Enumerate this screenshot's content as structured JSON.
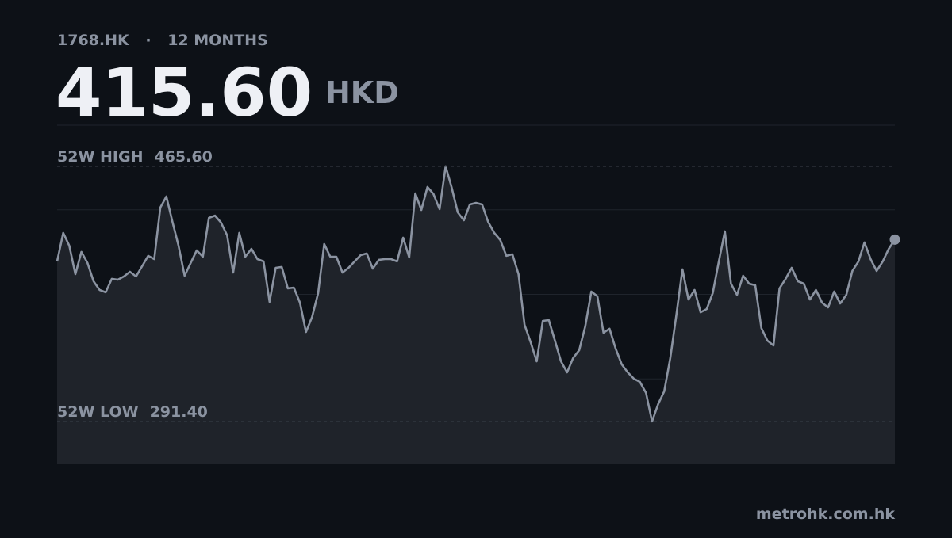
{
  "chart_data": {
    "type": "line",
    "ticker": "1768.HK",
    "separator": "·",
    "period": "12 MONTHS",
    "price": "415.60",
    "currency": "HKD",
    "source": "metrohk.com.hk",
    "ylim": [
      262.7,
      493.7
    ],
    "line_color": "#8b93a1",
    "annotations": [
      {
        "label": "52W HIGH",
        "value": 465.6,
        "value_label": "465.60"
      },
      {
        "label": "52W LOW",
        "value": 291.4,
        "value_label": "291.40"
      }
    ],
    "values": [
      400.7,
      420.2,
      411.5,
      392.0,
      407.2,
      399.6,
      387.2,
      381.2,
      379.6,
      388.8,
      388.2,
      390.4,
      393.6,
      390.4,
      397.4,
      404.5,
      402.3,
      437.5,
      445.0,
      427.7,
      411.5,
      390.9,
      399.6,
      408.2,
      403.9,
      430.4,
      432.0,
      427.2,
      418.5,
      393.1,
      420.2,
      403.9,
      409.3,
      402.3,
      400.7,
      373.1,
      396.3,
      396.9,
      382.3,
      382.8,
      372.5,
      352.5,
      362.8,
      379.0,
      412.6,
      403.9,
      403.9,
      393.1,
      396.3,
      400.7,
      405.0,
      406.1,
      395.8,
      401.8,
      402.3,
      402.3,
      400.7,
      416.9,
      403.4,
      447.2,
      435.8,
      451.5,
      446.7,
      436.4,
      465.6,
      451.0,
      434.2,
      428.8,
      439.6,
      440.7,
      439.6,
      427.7,
      420.2,
      415.3,
      404.5,
      405.6,
      392.0,
      357.4,
      345.5,
      332.5,
      360.1,
      360.6,
      346.6,
      332.5,
      324.9,
      334.7,
      340.1,
      356.3,
      380.1,
      376.9,
      352.0,
      354.7,
      341.2,
      330.4,
      324.9,
      320.6,
      318.4,
      310.9,
      291.4,
      303.3,
      311.9,
      334.7,
      363.9,
      395.3,
      374.7,
      381.2,
      366.0,
      368.2,
      379.0,
      400.7,
      421.2,
      385.5,
      377.9,
      390.9,
      385.5,
      384.4,
      355.2,
      346.6,
      343.3,
      382.3,
      388.8,
      396.3,
      387.2,
      385.5,
      374.7,
      381.2,
      372.5,
      369.3,
      380.1,
      372.0,
      377.9,
      394.2,
      400.7,
      413.7,
      402.3,
      394.2,
      400.7,
      409.3,
      415.6
    ]
  }
}
